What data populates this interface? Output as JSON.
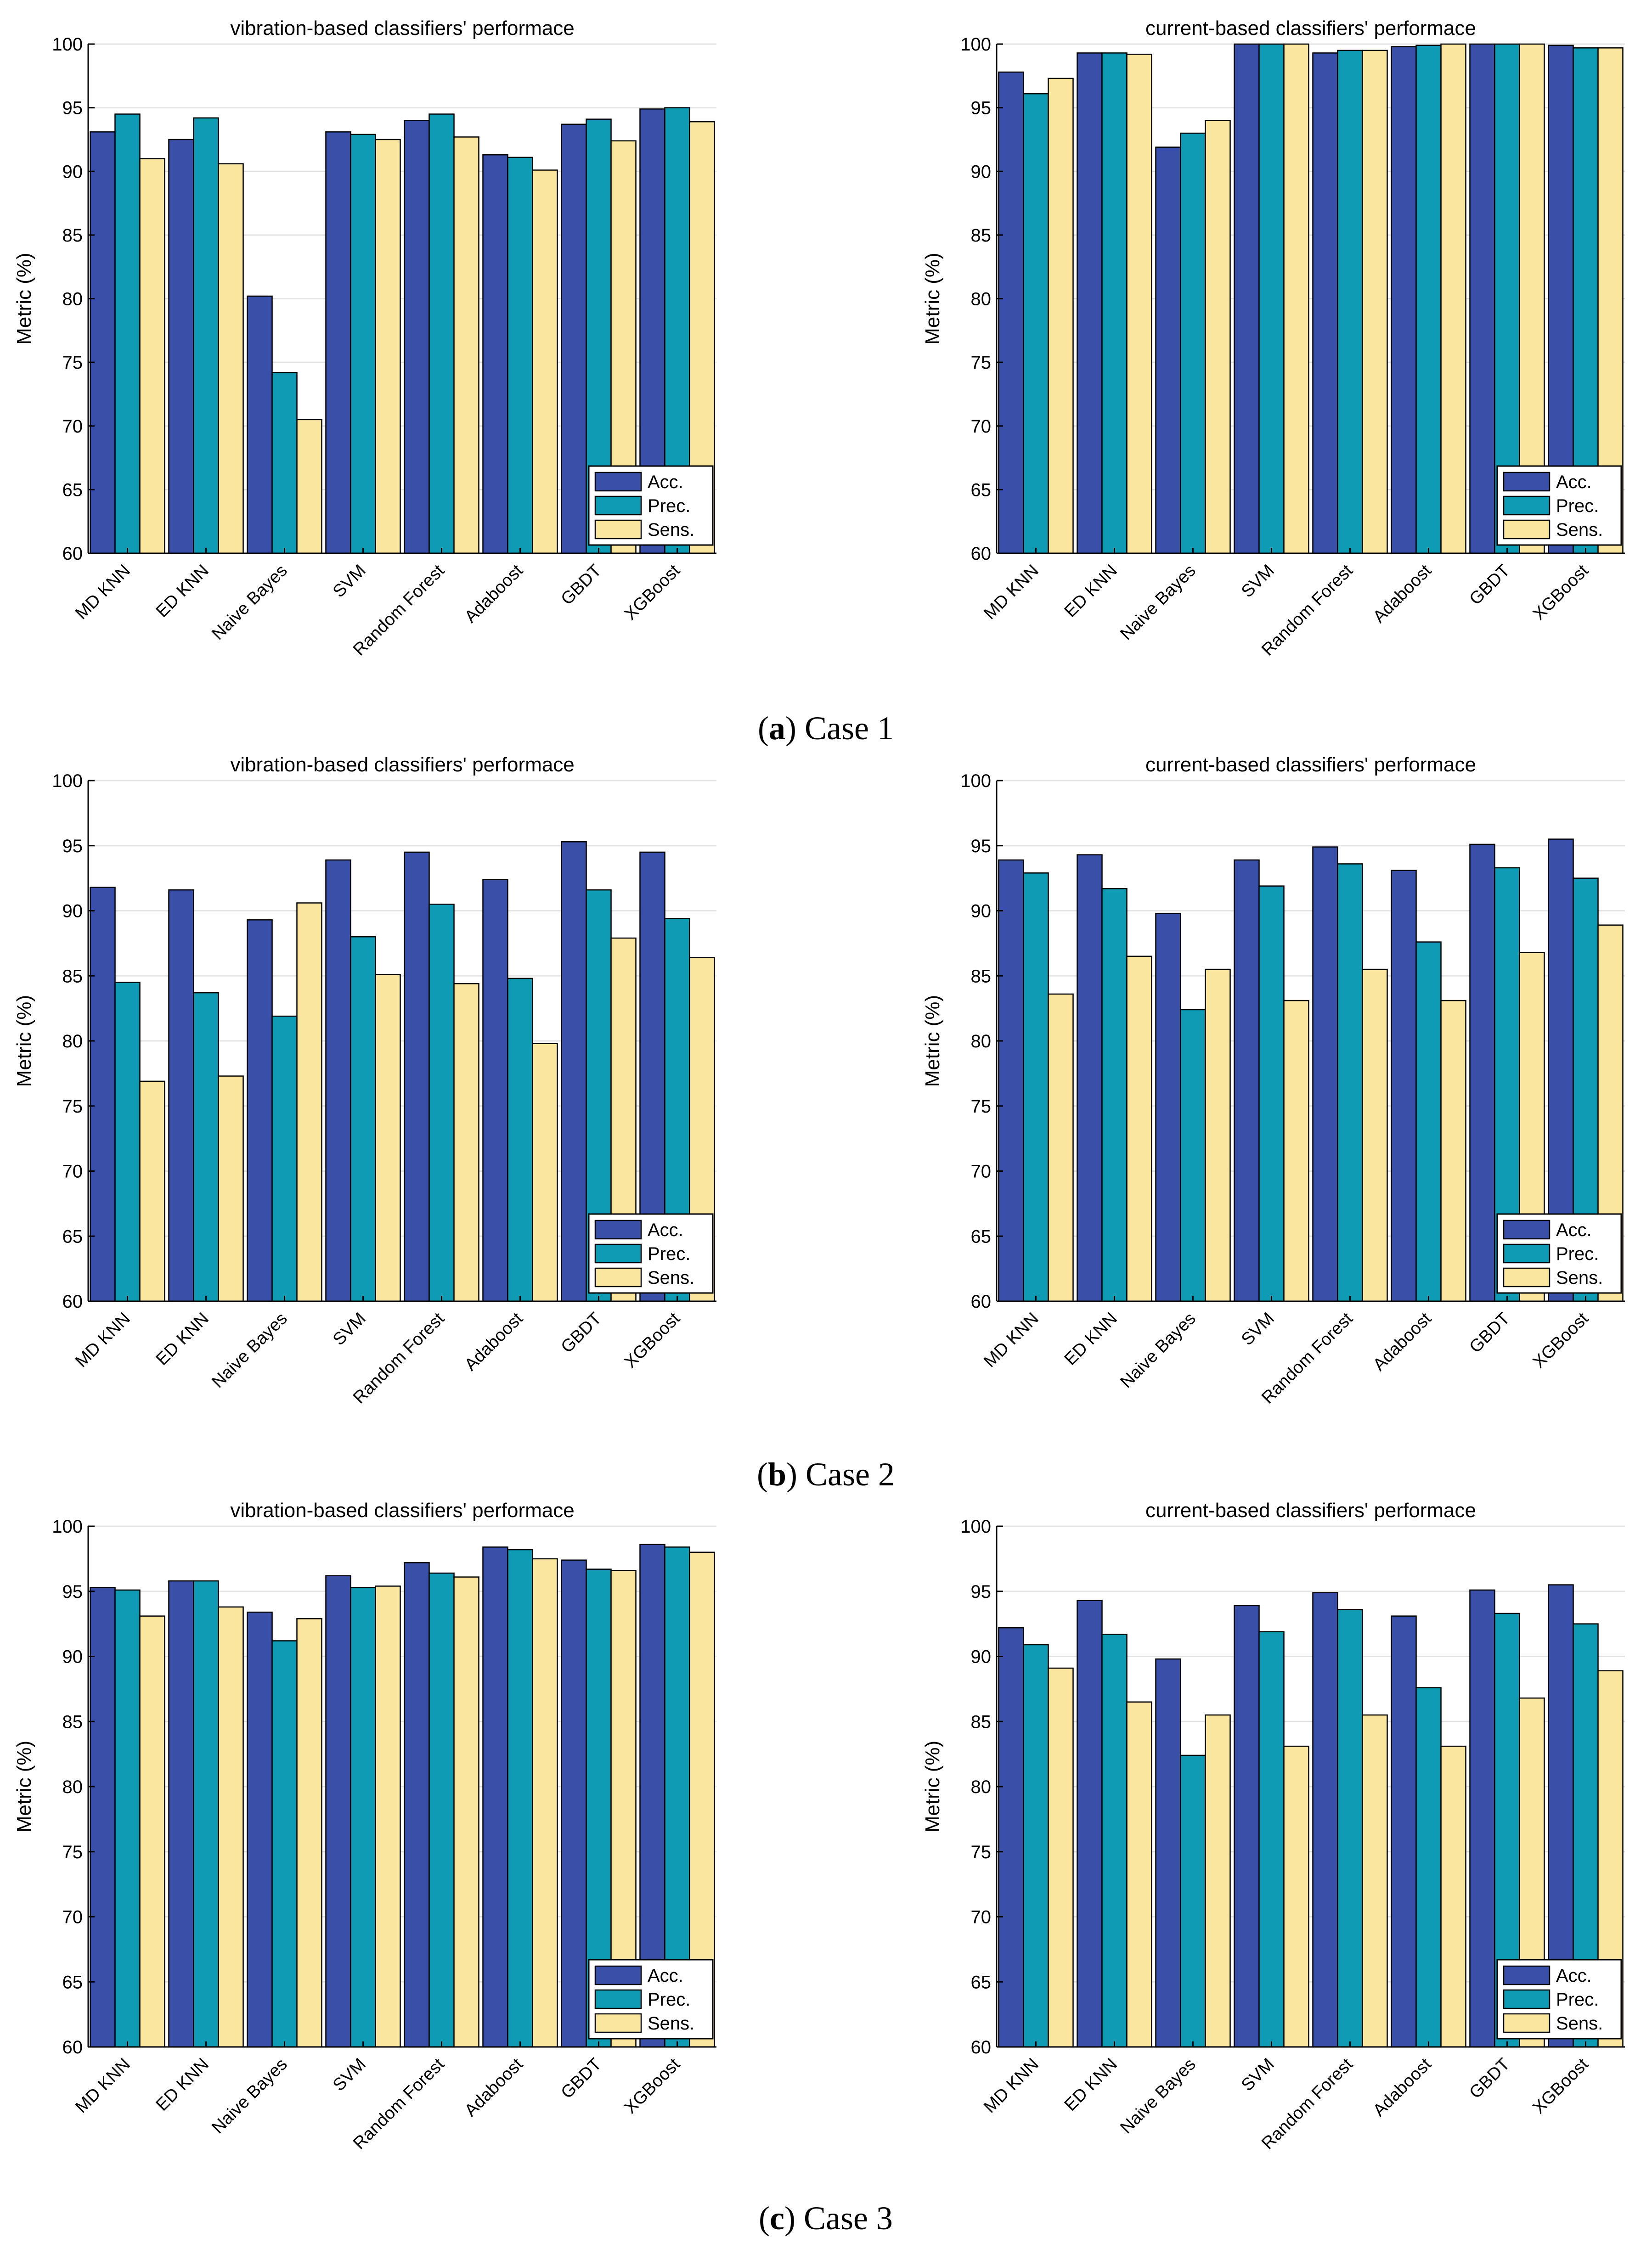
{
  "figure": {
    "captions": [
      {
        "label": "a",
        "text": "Case 1"
      },
      {
        "label": "b",
        "text": "Case 2"
      },
      {
        "label": "c",
        "text": "Case 3"
      }
    ]
  },
  "colors": {
    "acc": "#3a4fa8",
    "prec": "#0f9bb3",
    "sens": "#fbe6a0",
    "grid": "#e3e3e3"
  },
  "chart_data": [
    {
      "type": "bar",
      "title": "vibration-based classifiers' performace",
      "ylabel": "Metric (%)",
      "ylim": [
        60,
        100
      ],
      "yticks": [
        60,
        65,
        70,
        75,
        80,
        85,
        90,
        95,
        100
      ],
      "legend": "bottom-right",
      "categories": [
        "MD KNN",
        "ED KNN",
        "Naive Bayes",
        "SVM",
        "Random Forest",
        "Adaboost",
        "GBDT",
        "XGBoost"
      ],
      "series": [
        {
          "name": "Acc.",
          "values": [
            93.1,
            92.5,
            80.2,
            93.1,
            94.0,
            91.3,
            93.7,
            94.9
          ]
        },
        {
          "name": "Prec.",
          "values": [
            94.5,
            94.2,
            74.2,
            92.9,
            94.5,
            91.1,
            94.1,
            95.0
          ]
        },
        {
          "name": "Sens.",
          "values": [
            91.0,
            90.6,
            70.5,
            92.5,
            92.7,
            90.1,
            92.4,
            93.9
          ]
        }
      ]
    },
    {
      "type": "bar",
      "title": "current-based classifiers' performace",
      "ylabel": "Metric (%)",
      "ylim": [
        60,
        100
      ],
      "yticks": [
        60,
        65,
        70,
        75,
        80,
        85,
        90,
        95,
        100
      ],
      "legend": "bottom-right",
      "categories": [
        "MD KNN",
        "ED KNN",
        "Naive Bayes",
        "SVM",
        "Random Forest",
        "Adaboost",
        "GBDT",
        "XGBoost"
      ],
      "series": [
        {
          "name": "Acc.",
          "values": [
            97.8,
            99.3,
            91.9,
            100.0,
            99.3,
            99.8,
            100.0,
            99.9
          ]
        },
        {
          "name": "Prec.",
          "values": [
            96.1,
            99.3,
            93.0,
            100.0,
            99.5,
            99.9,
            100.0,
            99.7
          ]
        },
        {
          "name": "Sens.",
          "values": [
            97.3,
            99.2,
            94.0,
            100.0,
            99.5,
            100.0,
            100.0,
            99.7
          ]
        }
      ]
    },
    {
      "type": "bar",
      "title": "vibration-based classifiers' performace",
      "ylabel": "Metric (%)",
      "ylim": [
        60,
        100
      ],
      "yticks": [
        60,
        65,
        70,
        75,
        80,
        85,
        90,
        95,
        100
      ],
      "legend": "bottom-right",
      "categories": [
        "MD KNN",
        "ED KNN",
        "Naive Bayes",
        "SVM",
        "Random Forest",
        "Adaboost",
        "GBDT",
        "XGBoost"
      ],
      "series": [
        {
          "name": "Acc.",
          "values": [
            91.8,
            91.6,
            89.3,
            93.9,
            94.5,
            92.4,
            95.3,
            94.5
          ]
        },
        {
          "name": "Prec.",
          "values": [
            84.5,
            83.7,
            81.9,
            88.0,
            90.5,
            84.8,
            91.6,
            89.4
          ]
        },
        {
          "name": "Sens.",
          "values": [
            76.9,
            77.3,
            90.6,
            85.1,
            84.4,
            79.8,
            87.9,
            86.4
          ]
        }
      ]
    },
    {
      "type": "bar",
      "title": "current-based classifiers' performace",
      "ylabel": "Metric (%)",
      "ylim": [
        60,
        100
      ],
      "yticks": [
        60,
        65,
        70,
        75,
        80,
        85,
        90,
        95,
        100
      ],
      "legend": "bottom-right",
      "categories": [
        "MD KNN",
        "ED KNN",
        "Naive Bayes",
        "SVM",
        "Random Forest",
        "Adaboost",
        "GBDT",
        "XGBoost"
      ],
      "series": [
        {
          "name": "Acc.",
          "values": [
            93.9,
            94.3,
            89.8,
            93.9,
            94.9,
            93.1,
            95.1,
            95.5
          ]
        },
        {
          "name": "Prec.",
          "values": [
            92.9,
            91.7,
            82.4,
            91.9,
            93.6,
            87.6,
            93.3,
            92.5
          ]
        },
        {
          "name": "Sens.",
          "values": [
            83.6,
            86.5,
            85.5,
            83.1,
            85.5,
            83.1,
            86.8,
            88.9
          ]
        }
      ]
    },
    {
      "type": "bar",
      "title": "vibration-based classifiers' performace",
      "ylabel": "Metric (%)",
      "ylim": [
        60,
        100
      ],
      "yticks": [
        60,
        65,
        70,
        75,
        80,
        85,
        90,
        95,
        100
      ],
      "legend": "bottom-right",
      "categories": [
        "MD KNN",
        "ED KNN",
        "Naive Bayes",
        "SVM",
        "Random Forest",
        "Adaboost",
        "GBDT",
        "XGBoost"
      ],
      "series": [
        {
          "name": "Acc.",
          "values": [
            95.3,
            95.8,
            93.4,
            96.2,
            97.2,
            98.4,
            97.4,
            98.6
          ]
        },
        {
          "name": "Prec.",
          "values": [
            95.1,
            95.8,
            91.2,
            95.3,
            96.4,
            98.2,
            96.7,
            98.4
          ]
        },
        {
          "name": "Sens.",
          "values": [
            93.1,
            93.8,
            92.9,
            95.4,
            96.1,
            97.5,
            96.6,
            98.0
          ]
        }
      ]
    },
    {
      "type": "bar",
      "title": "current-based classifiers' performace",
      "ylabel": "Metric (%)",
      "ylim": [
        60,
        100
      ],
      "yticks": [
        60,
        65,
        70,
        75,
        80,
        85,
        90,
        95,
        100
      ],
      "legend": "bottom-right",
      "categories": [
        "MD KNN",
        "ED KNN",
        "Naive Bayes",
        "SVM",
        "Random Forest",
        "Adaboost",
        "GBDT",
        "XGBoost"
      ],
      "series": [
        {
          "name": "Acc.",
          "values": [
            92.2,
            94.3,
            89.8,
            93.9,
            94.9,
            93.1,
            95.1,
            95.5
          ]
        },
        {
          "name": "Prec.",
          "values": [
            90.9,
            91.7,
            82.4,
            91.9,
            93.6,
            87.6,
            93.3,
            92.5
          ]
        },
        {
          "name": "Sens.",
          "values": [
            89.1,
            86.5,
            85.5,
            83.1,
            85.5,
            83.1,
            86.8,
            88.9
          ]
        }
      ]
    }
  ]
}
